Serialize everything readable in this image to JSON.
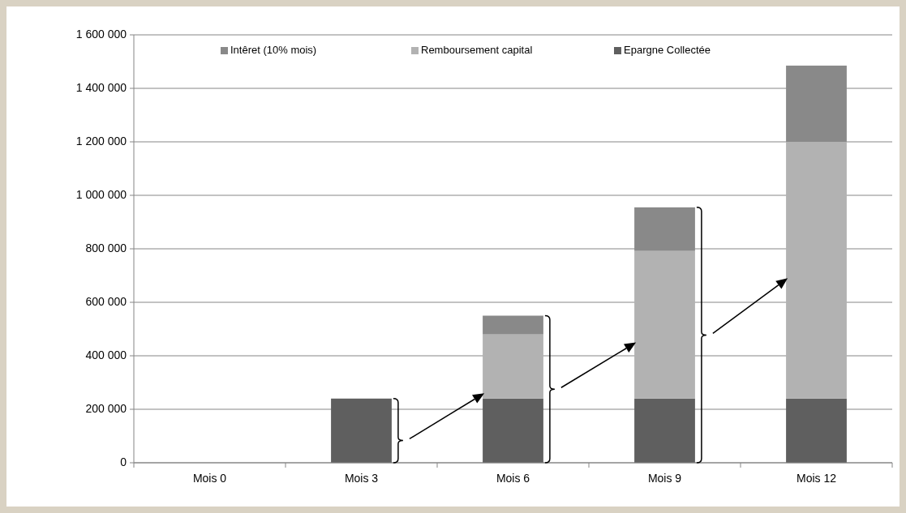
{
  "chart_data": {
    "type": "bar",
    "stacked": true,
    "categories": [
      "Mois 0",
      "Mois 3",
      "Mois 6",
      "Mois 9",
      "Mois 12"
    ],
    "series": [
      {
        "name": "Epargne Collectée",
        "color": "#5f5f5f",
        "values": [
          0,
          240000,
          240000,
          240000,
          240000
        ]
      },
      {
        "name": "Remboursement capital",
        "color": "#b2b2b2",
        "values": [
          0,
          0,
          240000,
          552000,
          960000
        ]
      },
      {
        "name": "Intêret (10% mois)",
        "color": "#898989",
        "values": [
          0,
          0,
          70000,
          163000,
          285000
        ]
      }
    ],
    "ylim": [
      0,
      1600000
    ],
    "yticks": [
      {
        "value": 0,
        "label": "0"
      },
      {
        "value": 200000,
        "label": "200 000"
      },
      {
        "value": 400000,
        "label": "400 000"
      },
      {
        "value": 600000,
        "label": "600 000"
      },
      {
        "value": 800000,
        "label": "800 000"
      },
      {
        "value": 1000000,
        "label": "1 000 000"
      },
      {
        "value": 1200000,
        "label": "1 200 000"
      },
      {
        "value": 1400000,
        "label": "1 400 000"
      },
      {
        "value": 1600000,
        "label": "1 600 000"
      }
    ],
    "grid": "y",
    "legend": "top"
  }
}
